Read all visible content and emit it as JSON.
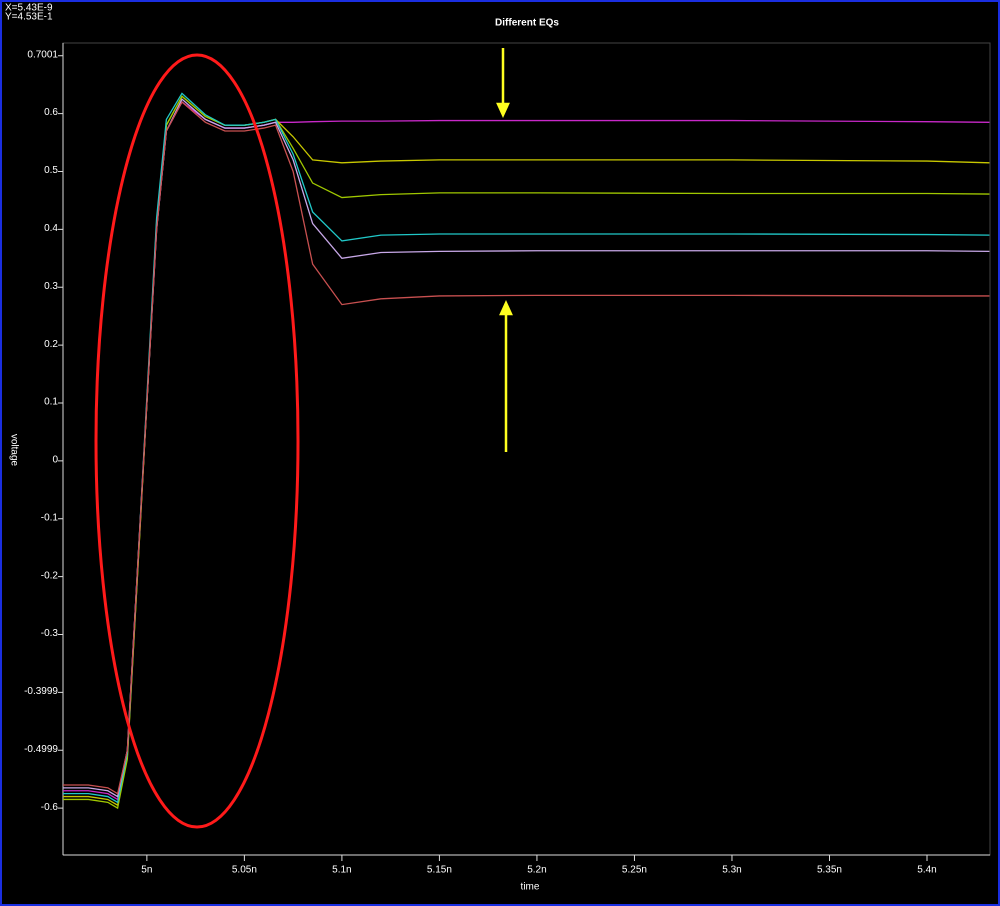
{
  "cursor_x": "X=5.43E-9",
  "cursor_y": "Y=4.53E-1",
  "chart_data": {
    "type": "line",
    "title": "Different EQs",
    "x_label": "time",
    "y_label": "voltage",
    "xlim": [
      4.957,
      5.4323
    ],
    "ylim": [
      -0.681,
      0.722
    ],
    "xticks": [
      {
        "value": 5,
        "label": "5n"
      },
      {
        "value": 5.05,
        "label": "5.05n"
      },
      {
        "value": 5.1,
        "label": "5.1n"
      },
      {
        "value": 5.15,
        "label": "5.15n"
      },
      {
        "value": 5.2,
        "label": "5.2n"
      },
      {
        "value": 5.25,
        "label": "5.25n"
      },
      {
        "value": 5.3,
        "label": "5.3n"
      },
      {
        "value": 5.35,
        "label": "5.35n"
      },
      {
        "value": 5.4,
        "label": "5.4n"
      }
    ],
    "yticks": [
      {
        "value": 0.7,
        "label": "0.7001"
      },
      0.6,
      0.5,
      0.4,
      0.3,
      0.2,
      0.1,
      0,
      -0.1,
      -0.2,
      -0.3,
      {
        "value": -0.4,
        "label": "-0.3999"
      },
      {
        "value": -0.5,
        "label": "-0.4999"
      },
      -0.6
    ],
    "x": [
      4.957,
      4.97,
      4.98,
      4.985,
      4.99,
      4.995,
      5.0,
      5.005,
      5.01,
      5.018,
      5.03,
      5.04,
      5.05,
      5.06,
      5.066,
      5.075,
      5.085,
      5.1,
      5.12,
      5.15,
      5.2,
      5.3,
      5.4,
      5.432
    ],
    "series": [
      {
        "color": "#c828c8",
        "values": [
          -0.57,
          -0.57,
          -0.575,
          -0.585,
          -0.5,
          -0.2,
          0.1,
          0.4,
          0.57,
          0.62,
          0.59,
          0.575,
          0.575,
          0.58,
          0.585,
          0.585,
          0.586,
          0.587,
          0.587,
          0.588,
          0.588,
          0.588,
          0.586,
          0.585
        ]
      },
      {
        "color": "#c8c800",
        "values": [
          -0.58,
          -0.58,
          -0.585,
          -0.595,
          -0.51,
          -0.21,
          0.1,
          0.41,
          0.58,
          0.63,
          0.595,
          0.58,
          0.58,
          0.585,
          0.59,
          0.56,
          0.52,
          0.515,
          0.518,
          0.52,
          0.52,
          0.52,
          0.518,
          0.515
        ]
      },
      {
        "color": "#a0c800",
        "values": [
          -0.585,
          -0.585,
          -0.59,
          -0.6,
          -0.515,
          -0.21,
          0.1,
          0.41,
          0.58,
          0.63,
          0.595,
          0.58,
          0.58,
          0.585,
          0.59,
          0.54,
          0.48,
          0.455,
          0.46,
          0.463,
          0.463,
          0.462,
          0.462,
          0.461
        ]
      },
      {
        "color": "#20c8c8",
        "values": [
          -0.575,
          -0.575,
          -0.58,
          -0.59,
          -0.505,
          -0.2,
          0.11,
          0.42,
          0.59,
          0.635,
          0.598,
          0.58,
          0.58,
          0.585,
          0.59,
          0.53,
          0.43,
          0.38,
          0.39,
          0.392,
          0.392,
          0.392,
          0.391,
          0.39
        ]
      },
      {
        "color": "#c8a8e8",
        "values": [
          -0.565,
          -0.565,
          -0.57,
          -0.58,
          -0.5,
          -0.2,
          0.1,
          0.4,
          0.57,
          0.625,
          0.59,
          0.575,
          0.575,
          0.58,
          0.585,
          0.52,
          0.41,
          0.35,
          0.36,
          0.362,
          0.363,
          0.363,
          0.363,
          0.362
        ]
      },
      {
        "color": "#c85050",
        "values": [
          -0.56,
          -0.56,
          -0.565,
          -0.575,
          -0.5,
          -0.2,
          0.1,
          0.4,
          0.57,
          0.62,
          0.585,
          0.57,
          0.57,
          0.575,
          0.58,
          0.5,
          0.34,
          0.27,
          0.28,
          0.285,
          0.286,
          0.286,
          0.285,
          0.285
        ]
      }
    ]
  }
}
